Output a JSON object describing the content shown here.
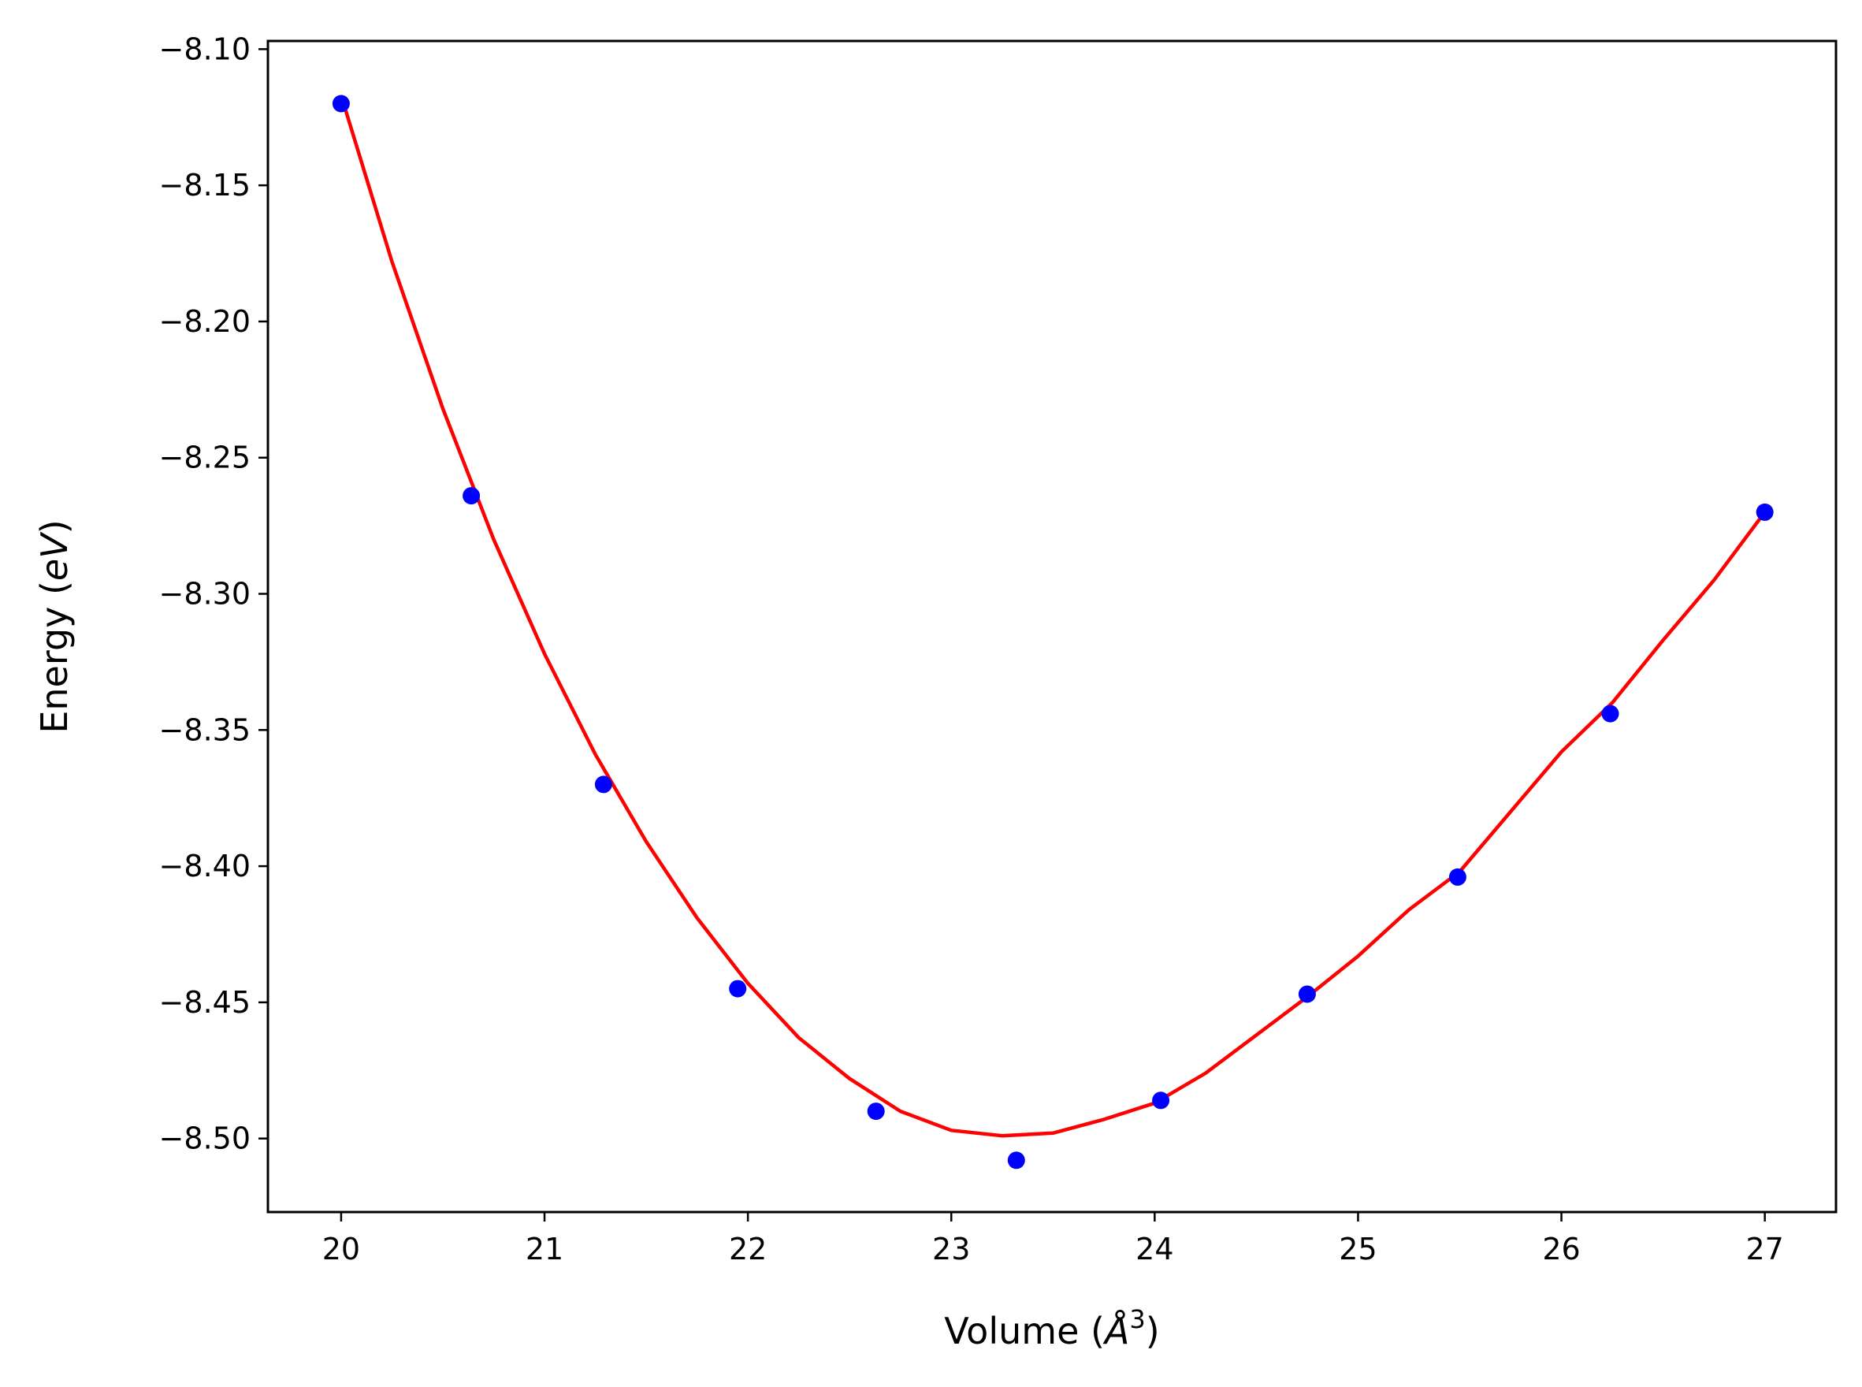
{
  "chart_data": {
    "type": "scatter",
    "xlabel": {
      "prefix": "Volume (",
      "symbol": "Å",
      "sup": "3",
      "suffix": ")"
    },
    "ylabel": {
      "prefix": "Energy (",
      "symbol": "eV",
      "suffix": ")"
    },
    "xlim": [
      19.64,
      27.35
    ],
    "ylim": [
      -8.527,
      -8.097
    ],
    "xticks": [
      20,
      21,
      22,
      23,
      24,
      25,
      26,
      27
    ],
    "xtick_labels": [
      "20",
      "21",
      "22",
      "23",
      "24",
      "25",
      "26",
      "27"
    ],
    "yticks": [
      -8.1,
      -8.15,
      -8.2,
      -8.25,
      -8.3,
      -8.35,
      -8.4,
      -8.45,
      -8.5
    ],
    "ytick_labels": [
      "−8.10",
      "−8.15",
      "−8.20",
      "−8.25",
      "−8.30",
      "−8.35",
      "−8.40",
      "−8.45",
      "−8.50"
    ],
    "grid": false,
    "series": [
      {
        "kind": "points",
        "color": "#0000ff",
        "x": [
          20.0,
          20.64,
          21.29,
          21.95,
          22.63,
          23.32,
          24.03,
          24.75,
          25.49,
          26.24,
          27.0
        ],
        "y": [
          -8.12,
          -8.264,
          -8.37,
          -8.445,
          -8.49,
          -8.508,
          -8.486,
          -8.447,
          -8.404,
          -8.344,
          -8.27
        ]
      },
      {
        "kind": "fit-curve",
        "color": "#ff0000",
        "x": [
          20.0,
          20.25,
          20.5,
          20.75,
          21.0,
          21.25,
          21.5,
          21.75,
          22.0,
          22.25,
          22.5,
          22.75,
          23.0,
          23.25,
          23.5,
          23.75,
          24.0,
          24.25,
          24.5,
          24.75,
          25.0,
          25.25,
          25.5,
          25.75,
          26.0,
          26.25,
          26.5,
          26.75,
          27.0
        ],
        "y": [
          -8.117,
          -8.178,
          -8.232,
          -8.28,
          -8.322,
          -8.359,
          -8.391,
          -8.419,
          -8.443,
          -8.463,
          -8.478,
          -8.49,
          -8.497,
          -8.499,
          -8.498,
          -8.493,
          -8.487,
          -8.476,
          -8.462,
          -8.448,
          -8.433,
          -8.416,
          -8.402,
          -8.38,
          -8.358,
          -8.34,
          -8.317,
          -8.295,
          -8.27
        ]
      }
    ]
  }
}
